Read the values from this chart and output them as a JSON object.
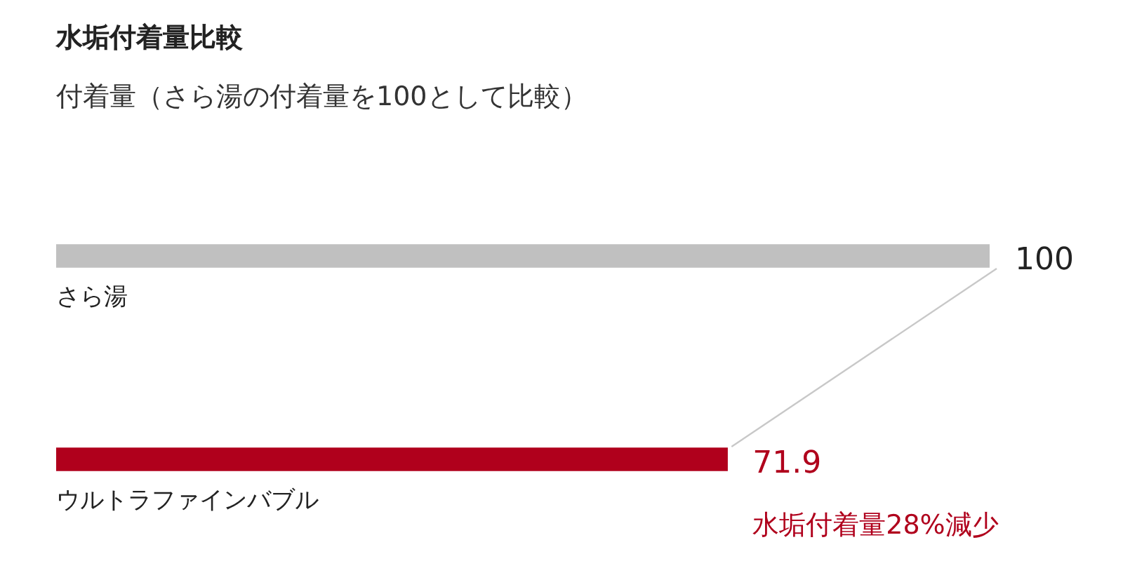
{
  "chart_data": {
    "type": "bar",
    "orientation": "horizontal",
    "title": "水垢付着量比較",
    "subtitle": "付着量（さら湯の付着量を100として比較）",
    "categories": [
      "さら湯",
      "ウルトラファインバブル"
    ],
    "values": [
      100,
      71.9
    ],
    "colors": [
      "#c0c0c0",
      "#b0001c"
    ],
    "data_labels": true,
    "annotations": [
      "水垢付着量28%減少"
    ]
  }
}
